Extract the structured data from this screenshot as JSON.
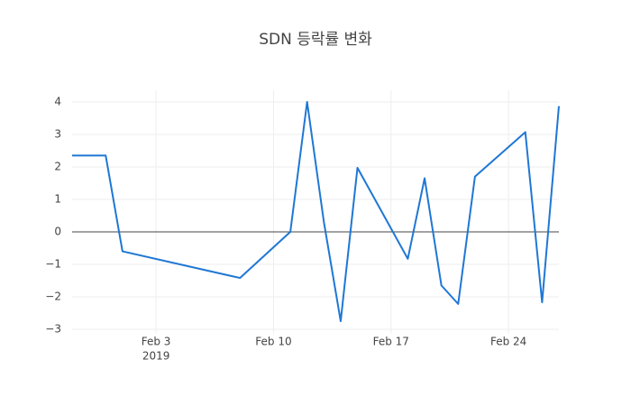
{
  "chart_data": {
    "type": "line",
    "title": "SDN 등락률 변화",
    "x": [
      "2019-01-29",
      "2019-01-31",
      "2019-02-01",
      "2019-02-08",
      "2019-02-11",
      "2019-02-12",
      "2019-02-13",
      "2019-02-14",
      "2019-02-15",
      "2019-02-18",
      "2019-02-19",
      "2019-02-20",
      "2019-02-21",
      "2019-02-22",
      "2019-02-25",
      "2019-02-26",
      "2019-02-27"
    ],
    "series": [
      {
        "color": "#1f77d4",
        "values": [
          2.35,
          2.35,
          -0.6,
          -1.42,
          0.0,
          4.0,
          0.3,
          -2.75,
          1.97,
          -0.83,
          1.65,
          -1.65,
          -2.22,
          1.7,
          3.07,
          -2.17,
          3.87
        ]
      }
    ],
    "xlim": [
      "2019-01-29",
      "2019-02-27"
    ],
    "xticks": [
      {
        "value": "2019-02-03",
        "label": "Feb 3"
      },
      {
        "value": "2019-02-10",
        "label": "Feb 10"
      },
      {
        "value": "2019-02-17",
        "label": "Feb 17"
      },
      {
        "value": "2019-02-24",
        "label": "Feb 24"
      }
    ],
    "x_year_label": "2019",
    "ylim": [
      -3.14,
      4.36
    ],
    "yticks": [
      {
        "value": -3,
        "label": "−3"
      },
      {
        "value": -2,
        "label": "−2"
      },
      {
        "value": -1,
        "label": "−1"
      },
      0,
      1,
      2,
      3,
      4
    ],
    "grid": true,
    "zeroline": true
  }
}
